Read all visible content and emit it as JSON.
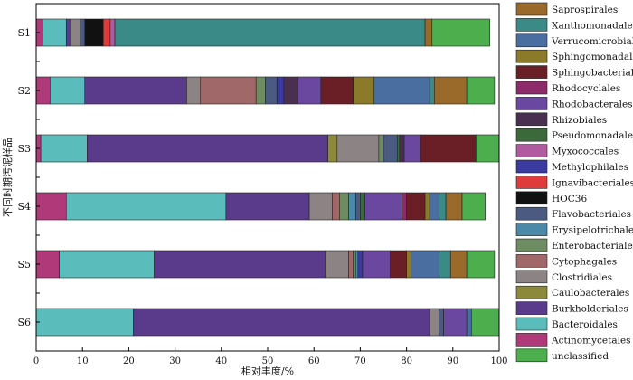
{
  "chart_data": {
    "type": "bar",
    "orientation": "horizontal",
    "stacked": true,
    "xlabel": "相对丰度/%",
    "ylabel": "不同时期污泥样品",
    "xlim": [
      0,
      100
    ],
    "xticks": [
      0,
      10,
      20,
      30,
      40,
      50,
      60,
      70,
      80,
      90,
      100
    ],
    "grid": false,
    "legend_position": "right",
    "categories": [
      "S1",
      "S2",
      "S3",
      "S4",
      "S5",
      "S6"
    ],
    "series": [
      {
        "name": "Actinomycetales",
        "color": "#b0397a",
        "values": [
          1.5,
          3.0,
          1.0,
          6.5,
          5.0,
          0.0
        ]
      },
      {
        "name": "Bacteroidales",
        "color": "#5bbcbc",
        "values": [
          5.0,
          7.5,
          10.0,
          34.5,
          20.5,
          21.0
        ]
      },
      {
        "name": "Burkholderiales",
        "color": "#5a3a8a",
        "values": [
          1.0,
          22.0,
          52.0,
          18.0,
          37.0,
          64.0
        ]
      },
      {
        "name": "Caulobacterales",
        "color": "#8c8a3a",
        "values": [
          0.0,
          0.0,
          2.0,
          0.0,
          0.0,
          0.0
        ]
      },
      {
        "name": "Clostridiales",
        "color": "#8c8484",
        "values": [
          2.0,
          3.0,
          9.0,
          5.0,
          5.0,
          2.0
        ]
      },
      {
        "name": "Cytophagales",
        "color": "#a06868",
        "values": [
          0.0,
          12.0,
          0.0,
          1.5,
          1.0,
          0.0
        ]
      },
      {
        "name": "Enterobacteriales",
        "color": "#6e8c62",
        "values": [
          0.0,
          2.0,
          1.0,
          2.0,
          0.5,
          0.0
        ]
      },
      {
        "name": "Erysipelotrichales",
        "color": "#4a8aa8",
        "values": [
          0.0,
          0.0,
          0.0,
          1.5,
          0.5,
          0.0
        ]
      },
      {
        "name": "Flavobacteriales",
        "color": "#4a5a80",
        "values": [
          1.0,
          2.5,
          3.0,
          1.0,
          0.0,
          1.0
        ]
      },
      {
        "name": "HOC36",
        "color": "#111111",
        "values": [
          4.0,
          0.0,
          0.0,
          0.0,
          0.0,
          0.0
        ]
      },
      {
        "name": "Ignavibacteriales",
        "color": "#e03a3a",
        "values": [
          1.5,
          0.0,
          0.0,
          0.0,
          0.0,
          0.0
        ]
      },
      {
        "name": "Methylophilales",
        "color": "#3a3aa0",
        "values": [
          0.0,
          1.5,
          0.0,
          0.0,
          1.0,
          0.0
        ]
      },
      {
        "name": "Myxococcales",
        "color": "#b05aa0",
        "values": [
          1.0,
          0.0,
          0.0,
          0.0,
          0.0,
          0.0
        ]
      },
      {
        "name": "Pseudomonadales",
        "color": "#3a6a3a",
        "values": [
          0.0,
          0.0,
          0.5,
          1.0,
          0.0,
          0.0
        ]
      },
      {
        "name": "Rhizobiales",
        "color": "#4a3050",
        "values": [
          0.0,
          3.0,
          1.0,
          0.0,
          0.0,
          0.0
        ]
      },
      {
        "name": "Rhodobacterales",
        "color": "#6a48a0",
        "values": [
          0.0,
          5.0,
          3.5,
          8.0,
          6.0,
          5.0
        ]
      },
      {
        "name": "Rhodocyclales",
        "color": "#8c2a6a",
        "values": [
          0.0,
          0.0,
          0.0,
          1.0,
          0.0,
          0.0
        ]
      },
      {
        "name": "Sphingobacteriales",
        "color": "#6a1e26",
        "values": [
          0.0,
          7.0,
          12.0,
          4.0,
          3.5,
          0.0
        ]
      },
      {
        "name": "Sphingomonadales",
        "color": "#8a7a2a",
        "values": [
          0.0,
          4.5,
          0.0,
          1.0,
          1.0,
          0.0
        ]
      },
      {
        "name": "Verrucomicrobiales",
        "color": "#4a6ea0",
        "values": [
          0.0,
          12.0,
          0.0,
          2.0,
          6.0,
          1.0
        ]
      },
      {
        "name": "Xanthomonadales",
        "color": "#3a8a88",
        "values": [
          67.0,
          1.0,
          0.0,
          1.5,
          2.5,
          0.0
        ]
      },
      {
        "name": "Saprospirales",
        "color": "#9a6a2a",
        "values": [
          1.5,
          7.0,
          0.0,
          3.5,
          3.5,
          0.0
        ]
      },
      {
        "name": "unclassified",
        "color": "#4cae4c",
        "values": [
          12.5,
          6.0,
          5.0,
          5.0,
          6.0,
          6.0
        ]
      }
    ],
    "legend_order": [
      "Saprospirales",
      "Xanthomonadales",
      "Verrucomicrobiales",
      "Sphingomonadales",
      "Sphingobacteriales",
      "Rhodocyclales",
      "Rhodobacterales",
      "Rhizobiales",
      "Pseudomonadales",
      "Myxococcales",
      "Methylophilales",
      "Ignavibacteriales",
      "HOC36",
      "Flavobacteriales",
      "Erysipelotrichales",
      "Enterobacteriales",
      "Cytophagales",
      "Clostridiales",
      "Caulobacterales",
      "Burkholderiales",
      "Bacteroidales",
      "Actinomycetales",
      "unclassified"
    ]
  }
}
